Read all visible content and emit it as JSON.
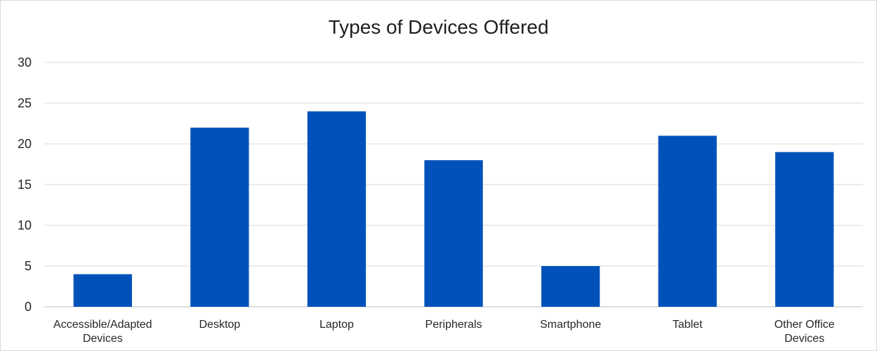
{
  "chart_data": {
    "type": "bar",
    "title": "Types of Devices Offered",
    "xlabel": "",
    "ylabel": "",
    "categories": [
      "Accessible/Adapted Devices",
      "Desktop",
      "Laptop",
      "Peripherals",
      "Smartphone",
      "Tablet",
      "Other Office Devices"
    ],
    "category_label_lines": [
      [
        "Accessible/Adapted",
        "Devices"
      ],
      [
        "Desktop"
      ],
      [
        "Laptop"
      ],
      [
        "Peripherals"
      ],
      [
        "Smartphone"
      ],
      [
        "Tablet"
      ],
      [
        "Other Office",
        "Devices"
      ]
    ],
    "values": [
      4,
      22,
      24,
      18,
      5,
      21,
      19
    ],
    "ylim": [
      0,
      30
    ],
    "yticks": [
      0,
      5,
      10,
      15,
      20,
      25,
      30
    ],
    "grid": true,
    "legend": "none",
    "bar_color": "#0052BA",
    "grid_color": "#d9d9d9"
  }
}
